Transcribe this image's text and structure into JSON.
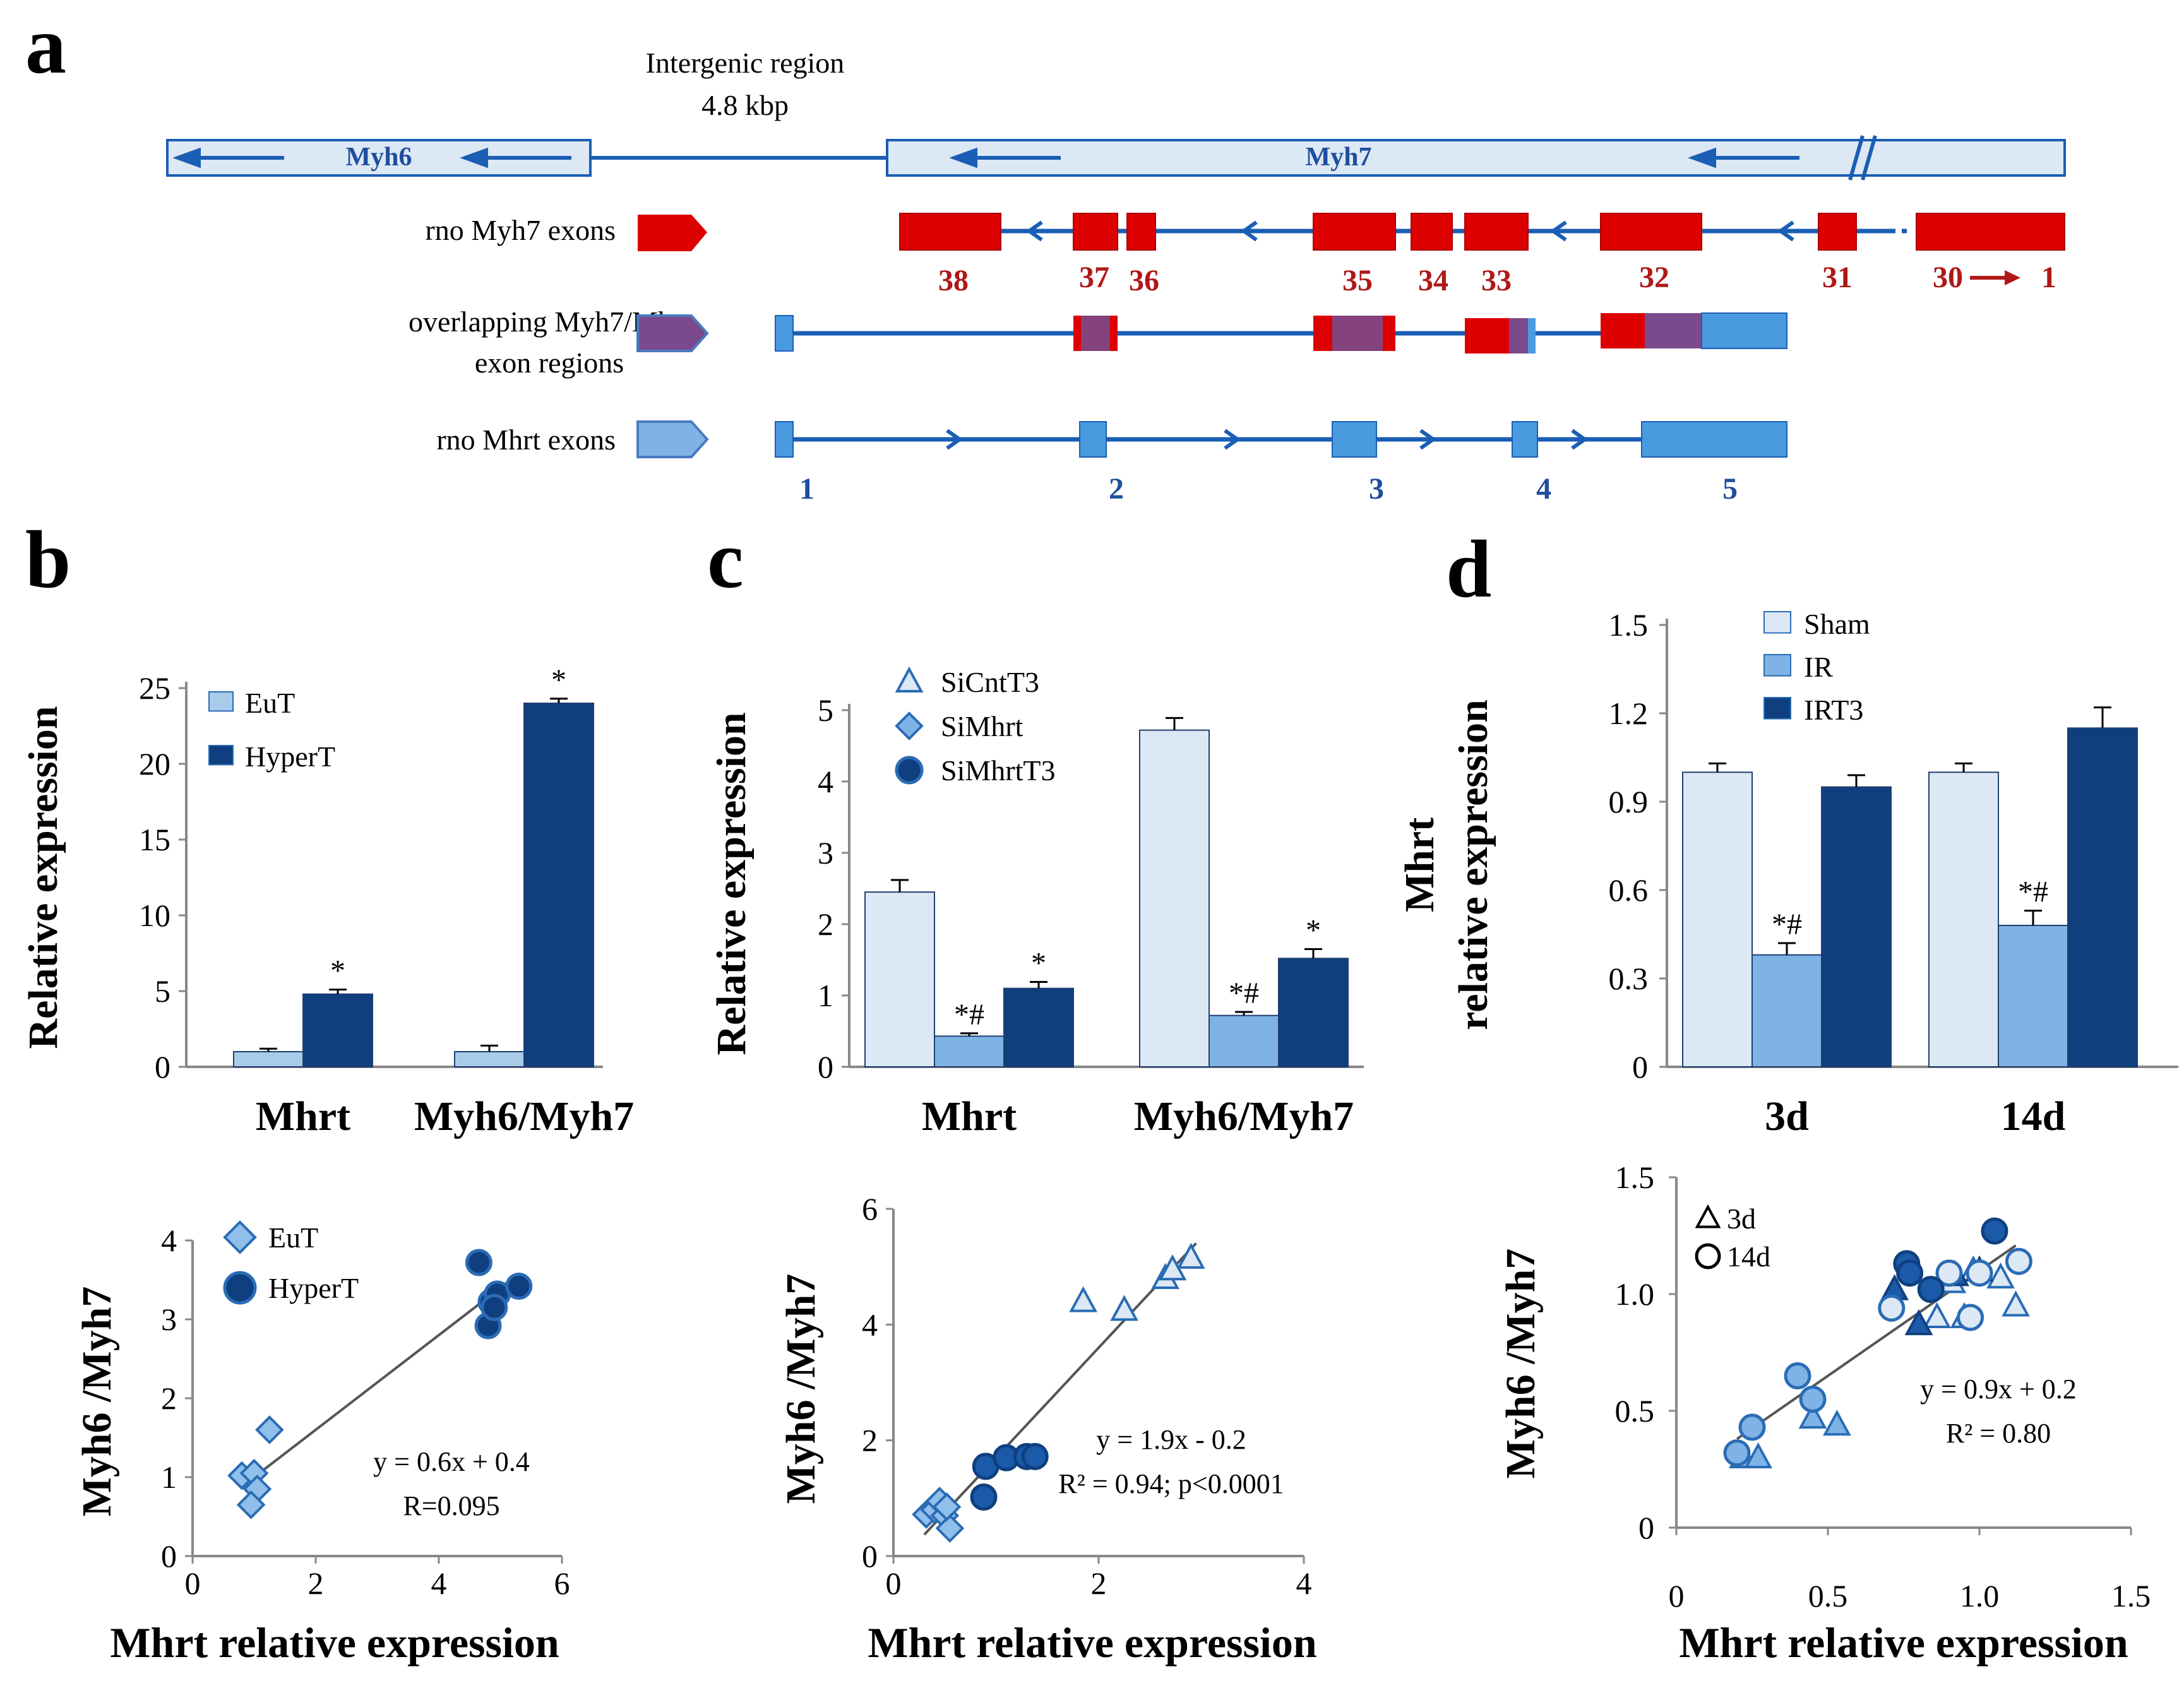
{
  "panel_labels": {
    "a": "a",
    "b": "b",
    "c": "c",
    "d": "d"
  },
  "gene_map": {
    "intergenic_label_line1": "Intergenic region",
    "intergenic_label_line2": "4.8 kbp",
    "myh6_label": "Myh6",
    "myh7_label": "Myh7",
    "row1_label": "rno Myh7 exons",
    "row2_label_line1": "overlapping Myh7/Mhrt",
    "row2_label_line2": "exon regions",
    "row3_label": "rno Mhrt exons",
    "myh7_exon_numbers": [
      "38",
      "37",
      "36",
      "35",
      "34",
      "33",
      "32",
      "31",
      "30",
      "1"
    ],
    "mhrt_exon_numbers": [
      "1",
      "2",
      "3",
      "4",
      "5"
    ],
    "colors": {
      "red": "#dd0000",
      "blue": "#1a5eb5",
      "light_box": "#dce8f4",
      "overlap": "#7a4a8c",
      "mhrt": "#4a9ae0"
    }
  },
  "chart_data": [
    {
      "id": "b-top",
      "type": "bar",
      "ylabel": "Relative expression",
      "categories": [
        "Mhrt",
        "Myh6/Myh7"
      ],
      "ylim": [
        0,
        25
      ],
      "yticks": [
        "0",
        "5",
        "10",
        "15",
        "20",
        "25"
      ],
      "series": [
        {
          "name": "EuT",
          "color": "#a9cbea",
          "values": [
            1.0,
            1.0
          ],
          "errors": [
            0.2,
            0.4
          ]
        },
        {
          "name": "HyperT",
          "color": "#0f3f7f",
          "values": [
            4.8,
            24.0
          ],
          "errors": [
            0.3,
            0.3
          ]
        }
      ],
      "annotations": [
        {
          "cat": 0,
          "series": 1,
          "text": "*"
        },
        {
          "cat": 1,
          "series": 1,
          "text": "*"
        }
      ],
      "legend": "top-left"
    },
    {
      "id": "c-top",
      "type": "bar",
      "ylabel": "Relative expression",
      "categories": [
        "Mhrt",
        "Myh6/Myh7"
      ],
      "ylim": [
        0,
        5
      ],
      "yticks": [
        "0",
        "1",
        "2",
        "3",
        "4",
        "5"
      ],
      "series": [
        {
          "name": "SiCntT3",
          "color": "#dce8f4",
          "values": [
            2.45,
            4.72
          ],
          "errors": [
            0.17,
            0.17
          ]
        },
        {
          "name": "SiMhrt",
          "color": "#7fb3e6",
          "values": [
            0.43,
            0.72
          ],
          "errors": [
            0.04,
            0.05
          ]
        },
        {
          "name": "SiMhrtT3",
          "color": "#0f3f7f",
          "values": [
            1.1,
            1.52
          ],
          "errors": [
            0.09,
            0.13
          ]
        }
      ],
      "annotations": [
        {
          "cat": 0,
          "series": 1,
          "text": "*#"
        },
        {
          "cat": 0,
          "series": 2,
          "text": "*"
        },
        {
          "cat": 1,
          "series": 1,
          "text": "*#"
        },
        {
          "cat": 1,
          "series": 2,
          "text": "*"
        }
      ],
      "legend": "top-left"
    },
    {
      "id": "d-top",
      "type": "bar",
      "ylabel_line1": "Mhrt",
      "ylabel_line2": "relative expression",
      "categories": [
        "3d",
        "14d"
      ],
      "ylim": [
        0,
        1.5
      ],
      "yticks": [
        "0",
        "0.3",
        "0.6",
        "0.9",
        "1.2",
        "1.5"
      ],
      "series": [
        {
          "name": "Sham",
          "color": "#dce8f4",
          "values": [
            1.0,
            1.0
          ],
          "errors": [
            0.03,
            0.03
          ]
        },
        {
          "name": "IR",
          "color": "#7fb3e6",
          "values": [
            0.38,
            0.48
          ],
          "errors": [
            0.04,
            0.05
          ]
        },
        {
          "name": "IRT3",
          "color": "#0f3f7f",
          "values": [
            0.95,
            1.15
          ],
          "errors": [
            0.04,
            0.07
          ]
        }
      ],
      "annotations": [
        {
          "cat": 0,
          "series": 1,
          "text": "*#"
        },
        {
          "cat": 1,
          "series": 1,
          "text": "*#"
        }
      ],
      "legend": "top-left"
    },
    {
      "id": "b-bottom",
      "type": "scatter",
      "xlabel": "Mhrt relative expression",
      "ylabel": "Myh6 /Myh7",
      "xlim": [
        0,
        6
      ],
      "ylim": [
        0,
        4
      ],
      "xticks": [
        "0",
        "2",
        "4",
        "6"
      ],
      "yticks": [
        "0",
        "1",
        "2",
        "3",
        "4"
      ],
      "series": [
        {
          "name": "EuT",
          "marker": "diamond",
          "fill": "#8fbfea",
          "stroke": "#2a6cb5",
          "points": [
            [
              0.8,
              1.02
            ],
            [
              1.0,
              1.05
            ],
            [
              1.05,
              0.85
            ],
            [
              0.95,
              0.65
            ],
            [
              1.25,
              1.6
            ]
          ]
        },
        {
          "name": "HyperT",
          "marker": "circle",
          "fill": "#0f3f7f",
          "stroke": "#2a6cb5",
          "points": [
            [
              4.65,
              3.72
            ],
            [
              4.8,
              2.92
            ],
            [
              4.85,
              3.22
            ],
            [
              4.95,
              3.32
            ],
            [
              4.9,
              3.15
            ],
            [
              5.3,
              3.42
            ]
          ]
        }
      ],
      "fit": {
        "x": [
          0.9,
          5.3
        ],
        "slope": 0.6,
        "intercept": 0.4
      },
      "equation": "y = 0.6x + 0.4",
      "stat": "R=0.095"
    },
    {
      "id": "c-bottom",
      "type": "scatter",
      "xlabel": "Mhrt relative expression",
      "ylabel": "Myh6 /Myh7",
      "xlim": [
        0,
        4
      ],
      "ylim": [
        0,
        6
      ],
      "xticks": [
        "0",
        "2",
        "4"
      ],
      "yticks": [
        "0",
        "2",
        "4",
        "6"
      ],
      "series": [
        {
          "name": "SiCntT3",
          "marker": "triangle",
          "fill": "#dce8f4",
          "stroke": "#2a6cb5",
          "points": [
            [
              1.85,
              4.4
            ],
            [
              2.25,
              4.25
            ],
            [
              2.65,
              4.8
            ],
            [
              2.72,
              4.95
            ],
            [
              2.9,
              5.15
            ]
          ]
        },
        {
          "name": "SiMhrt",
          "marker": "diamond",
          "fill": "#8fbfea",
          "stroke": "#2a6cb5",
          "points": [
            [
              0.32,
              0.72
            ],
            [
              0.4,
              0.8
            ],
            [
              0.45,
              0.95
            ],
            [
              0.5,
              0.7
            ],
            [
              0.55,
              0.48
            ],
            [
              0.52,
              0.85
            ]
          ]
        },
        {
          "name": "SiMhrtT3",
          "marker": "circle",
          "fill": "#1a5aa8",
          "stroke": "#0f3f7f",
          "points": [
            [
              0.88,
              1.02
            ],
            [
              0.9,
              1.55
            ],
            [
              1.1,
              1.7
            ],
            [
              1.3,
              1.72
            ],
            [
              1.38,
              1.72
            ]
          ]
        }
      ],
      "fit": {
        "x": [
          0.3,
          2.95
        ],
        "slope": 1.9,
        "intercept": -0.2
      },
      "equation": "y = 1.9x - 0.2",
      "stat": "R² = 0.94; p<0.0001"
    },
    {
      "id": "d-bottom",
      "type": "scatter",
      "xlabel": "Mhrt relative expression",
      "ylabel": "Myh6 /Myh7",
      "xlim": [
        0,
        1.5
      ],
      "ylim": [
        0,
        1.5
      ],
      "xticks": [
        "0",
        "0.5",
        "1.0",
        "1.5"
      ],
      "yticks": [
        "0",
        "0.5",
        "1.0",
        "1.5"
      ],
      "legend_items": [
        "3d",
        "14d"
      ],
      "series": [
        {
          "name": "3d-Sham",
          "marker": "triangle",
          "fill": "#dce8f4",
          "stroke": "#2a6cb5",
          "points": [
            [
              0.86,
              0.9
            ],
            [
              0.91,
              1.05
            ],
            [
              1.07,
              1.07
            ],
            [
              1.12,
              0.95
            ],
            [
              0.95,
              0.9
            ],
            [
              0.98,
              1.1
            ]
          ]
        },
        {
          "name": "3d-IR",
          "marker": "triangle",
          "fill": "#7fb3e6",
          "stroke": "#2a6cb5",
          "points": [
            [
              0.22,
              0.3
            ],
            [
              0.27,
              0.3
            ],
            [
              0.45,
              0.47
            ],
            [
              0.53,
              0.44
            ]
          ]
        },
        {
          "name": "3d-IRT3",
          "marker": "triangle",
          "fill": "#1a5aa8",
          "stroke": "#0f3f7f",
          "points": [
            [
              0.72,
              1.02
            ],
            [
              0.8,
              0.87
            ],
            [
              0.92,
              1.08
            ],
            [
              1.0,
              1.1
            ]
          ]
        },
        {
          "name": "14d-Sham",
          "marker": "circle",
          "fill": "#dce8f4",
          "stroke": "#2a6cb5",
          "points": [
            [
              0.71,
              0.94
            ],
            [
              0.9,
              1.09
            ],
            [
              1.0,
              1.09
            ],
            [
              0.97,
              0.9
            ],
            [
              1.13,
              1.14
            ]
          ]
        },
        {
          "name": "14d-IR",
          "marker": "circle",
          "fill": "#7fb3e6",
          "stroke": "#2a6cb5",
          "points": [
            [
              0.2,
              0.32
            ],
            [
              0.25,
              0.43
            ],
            [
              0.4,
              0.65
            ],
            [
              0.45,
              0.55
            ]
          ]
        },
        {
          "name": "14d-IRT3",
          "marker": "circle",
          "fill": "#1a5aa8",
          "stroke": "#0f3f7f",
          "points": [
            [
              0.76,
              1.13
            ],
            [
              0.77,
              1.09
            ],
            [
              0.84,
              1.02
            ],
            [
              1.05,
              1.27
            ]
          ]
        }
      ],
      "fit": {
        "x": [
          0.2,
          1.12
        ],
        "slope": 0.9,
        "intercept": 0.2
      },
      "equation": "y = 0.9x + 0.2",
      "stat": "R² = 0.80"
    }
  ]
}
